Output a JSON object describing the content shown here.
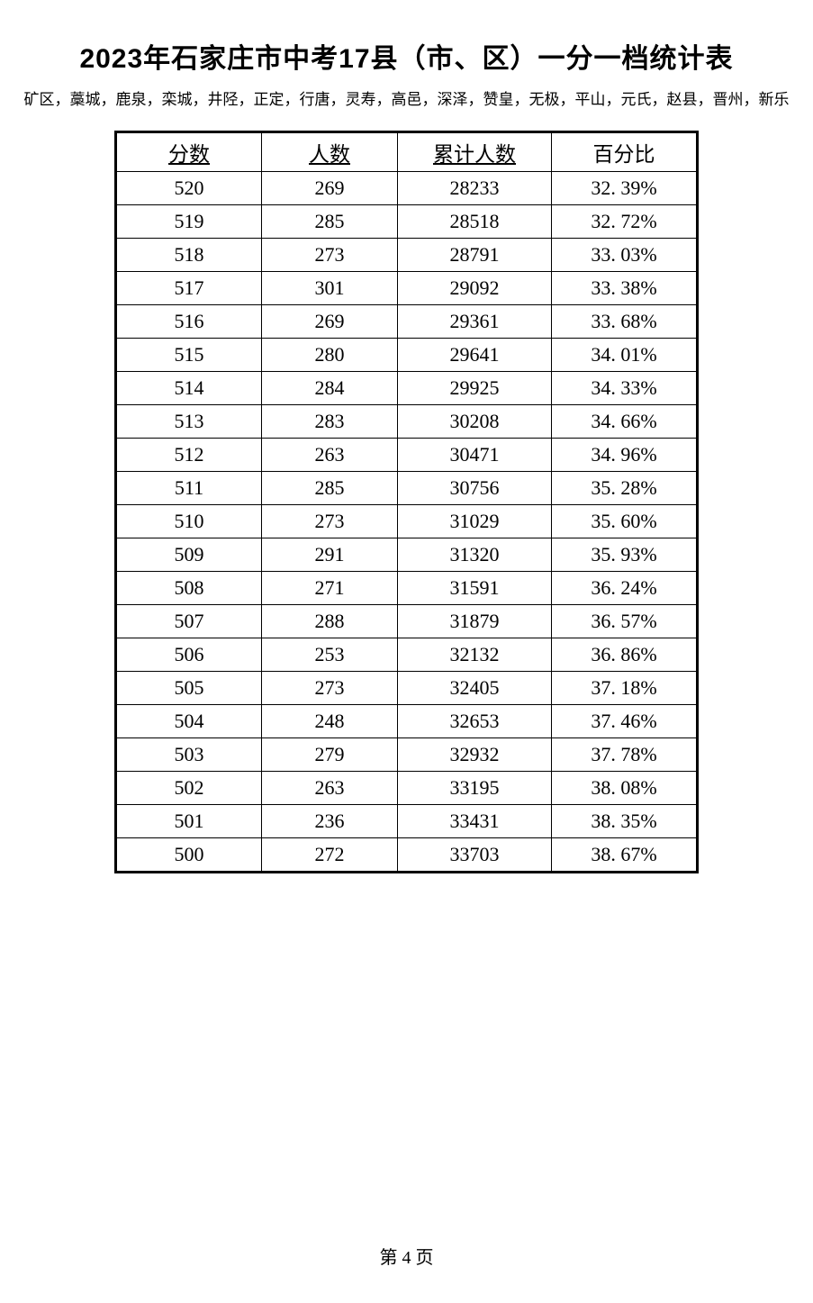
{
  "title": "2023年石家庄市中考17县（市、区）一分一档统计表",
  "subtitle": "矿区，藁城，鹿泉，栾城，井陉，正定，行唐，灵寿，高邑，深泽，赞皇，无极，平山，元氏，赵县，晋州，新乐",
  "columns": {
    "score": "分数",
    "count": "人数",
    "cum": "累计人数",
    "pct": "百分比"
  },
  "rows": [
    {
      "score": "520",
      "count": "269",
      "cum": "28233",
      "pct": "32. 39%"
    },
    {
      "score": "519",
      "count": "285",
      "cum": "28518",
      "pct": "32. 72%"
    },
    {
      "score": "518",
      "count": "273",
      "cum": "28791",
      "pct": "33. 03%"
    },
    {
      "score": "517",
      "count": "301",
      "cum": "29092",
      "pct": "33. 38%"
    },
    {
      "score": "516",
      "count": "269",
      "cum": "29361",
      "pct": "33. 68%"
    },
    {
      "score": "515",
      "count": "280",
      "cum": "29641",
      "pct": "34. 01%"
    },
    {
      "score": "514",
      "count": "284",
      "cum": "29925",
      "pct": "34. 33%"
    },
    {
      "score": "513",
      "count": "283",
      "cum": "30208",
      "pct": "34. 66%"
    },
    {
      "score": "512",
      "count": "263",
      "cum": "30471",
      "pct": "34. 96%"
    },
    {
      "score": "511",
      "count": "285",
      "cum": "30756",
      "pct": "35. 28%"
    },
    {
      "score": "510",
      "count": "273",
      "cum": "31029",
      "pct": "35. 60%"
    },
    {
      "score": "509",
      "count": "291",
      "cum": "31320",
      "pct": "35. 93%"
    },
    {
      "score": "508",
      "count": "271",
      "cum": "31591",
      "pct": "36. 24%"
    },
    {
      "score": "507",
      "count": "288",
      "cum": "31879",
      "pct": "36. 57%"
    },
    {
      "score": "506",
      "count": "253",
      "cum": "32132",
      "pct": "36. 86%"
    },
    {
      "score": "505",
      "count": "273",
      "cum": "32405",
      "pct": "37. 18%"
    },
    {
      "score": "504",
      "count": "248",
      "cum": "32653",
      "pct": "37. 46%"
    },
    {
      "score": "503",
      "count": "279",
      "cum": "32932",
      "pct": "37. 78%"
    },
    {
      "score": "502",
      "count": "263",
      "cum": "33195",
      "pct": "38. 08%"
    },
    {
      "score": "501",
      "count": "236",
      "cum": "33431",
      "pct": "38. 35%"
    },
    {
      "score": "500",
      "count": "272",
      "cum": "33703",
      "pct": "38. 67%"
    }
  ],
  "footer": "第 4 页"
}
